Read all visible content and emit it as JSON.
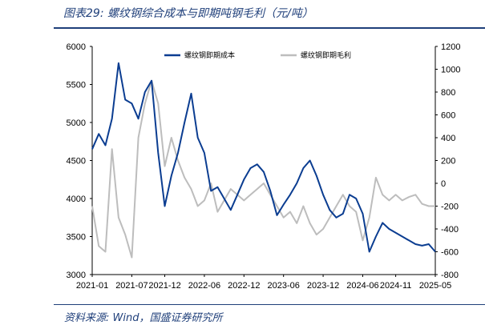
{
  "header": {
    "title": "图表29:  螺纹钢综合成本与即期吨钢毛利（元/吨）"
  },
  "footer": {
    "source": "资料来源:  Wind，国盛证券研究所"
  },
  "colors": {
    "cost": "#0b3d91",
    "margin": "#bdbdbd",
    "rule": "#1f3f7a"
  },
  "chart_data": {
    "type": "line",
    "title": "",
    "xlabel": "",
    "ylabel": "",
    "x_ticks": [
      "2021-01",
      "2021-07",
      "2021-12",
      "2022-06",
      "2022-12",
      "2023-06",
      "2023-12",
      "2024-06",
      "2024-11",
      "2025-05"
    ],
    "xlim": [
      "2021-01",
      "2025-05"
    ],
    "y_left": {
      "lim": [
        3000,
        6000
      ],
      "ticks": [
        3000,
        3500,
        4000,
        4500,
        5000,
        5500,
        6000
      ]
    },
    "y_right": {
      "lim": [
        -800,
        1200
      ],
      "ticks": [
        -800,
        -600,
        -400,
        -200,
        0,
        200,
        400,
        600,
        800,
        1000,
        1200
      ]
    },
    "legend_position": "top-center",
    "series": [
      {
        "name": "螺纹钢即期成本",
        "axis": "left",
        "points": [
          [
            "2021-01",
            4650
          ],
          [
            "2021-02",
            4850
          ],
          [
            "2021-03",
            4700
          ],
          [
            "2021-04",
            5050
          ],
          [
            "2021-05",
            5780
          ],
          [
            "2021-06",
            5300
          ],
          [
            "2021-07",
            5250
          ],
          [
            "2021-08",
            5050
          ],
          [
            "2021-09",
            5400
          ],
          [
            "2021-10",
            5550
          ],
          [
            "2021-11",
            4600
          ],
          [
            "2021-12",
            3900
          ],
          [
            "2022-01",
            4300
          ],
          [
            "2022-02",
            4600
          ],
          [
            "2022-03",
            5000
          ],
          [
            "2022-04",
            5380
          ],
          [
            "2022-05",
            4800
          ],
          [
            "2022-06",
            4600
          ],
          [
            "2022-07",
            4100
          ],
          [
            "2022-08",
            4150
          ],
          [
            "2022-09",
            4000
          ],
          [
            "2022-10",
            3850
          ],
          [
            "2022-11",
            4050
          ],
          [
            "2022-12",
            4250
          ],
          [
            "2023-01",
            4400
          ],
          [
            "2023-02",
            4450
          ],
          [
            "2023-03",
            4350
          ],
          [
            "2023-04",
            4100
          ],
          [
            "2023-05",
            3780
          ],
          [
            "2023-06",
            3920
          ],
          [
            "2023-07",
            4050
          ],
          [
            "2023-08",
            4200
          ],
          [
            "2023-09",
            4400
          ],
          [
            "2023-10",
            4500
          ],
          [
            "2023-11",
            4300
          ],
          [
            "2023-12",
            4050
          ],
          [
            "2024-01",
            3850
          ],
          [
            "2024-02",
            3750
          ],
          [
            "2024-03",
            3800
          ],
          [
            "2024-04",
            4050
          ],
          [
            "2024-05",
            4000
          ],
          [
            "2024-06",
            3800
          ],
          [
            "2024-07",
            3300
          ],
          [
            "2024-08",
            3500
          ],
          [
            "2024-09",
            3680
          ],
          [
            "2024-10",
            3600
          ],
          [
            "2024-11",
            3550
          ],
          [
            "2024-12",
            3500
          ],
          [
            "2025-01",
            3450
          ],
          [
            "2025-02",
            3400
          ],
          [
            "2025-03",
            3380
          ],
          [
            "2025-04",
            3400
          ],
          [
            "2025-05",
            3300
          ]
        ]
      },
      {
        "name": "螺纹钢即期毛利",
        "axis": "right",
        "points": [
          [
            "2021-01",
            -200
          ],
          [
            "2021-02",
            -550
          ],
          [
            "2021-03",
            -600
          ],
          [
            "2021-04",
            300
          ],
          [
            "2021-05",
            -300
          ],
          [
            "2021-06",
            -450
          ],
          [
            "2021-07",
            -650
          ],
          [
            "2021-08",
            400
          ],
          [
            "2021-09",
            700
          ],
          [
            "2021-10",
            900
          ],
          [
            "2021-11",
            700
          ],
          [
            "2021-12",
            150
          ],
          [
            "2022-01",
            400
          ],
          [
            "2022-02",
            200
          ],
          [
            "2022-03",
            50
          ],
          [
            "2022-04",
            -50
          ],
          [
            "2022-05",
            -200
          ],
          [
            "2022-06",
            -150
          ],
          [
            "2022-07",
            0
          ],
          [
            "2022-08",
            -250
          ],
          [
            "2022-09",
            -150
          ],
          [
            "2022-10",
            -50
          ],
          [
            "2022-11",
            -100
          ],
          [
            "2022-12",
            -150
          ],
          [
            "2023-01",
            -100
          ],
          [
            "2023-02",
            -50
          ],
          [
            "2023-03",
            0
          ],
          [
            "2023-04",
            -100
          ],
          [
            "2023-05",
            -200
          ],
          [
            "2023-06",
            -300
          ],
          [
            "2023-07",
            -250
          ],
          [
            "2023-08",
            -350
          ],
          [
            "2023-09",
            -200
          ],
          [
            "2023-10",
            -350
          ],
          [
            "2023-11",
            -450
          ],
          [
            "2023-12",
            -400
          ],
          [
            "2024-01",
            -300
          ],
          [
            "2024-02",
            -200
          ],
          [
            "2024-03",
            -100
          ],
          [
            "2024-04",
            -200
          ],
          [
            "2024-05",
            -250
          ],
          [
            "2024-06",
            -500
          ],
          [
            "2024-07",
            -300
          ],
          [
            "2024-08",
            50
          ],
          [
            "2024-09",
            -100
          ],
          [
            "2024-10",
            -150
          ],
          [
            "2024-11",
            -100
          ],
          [
            "2024-12",
            -150
          ],
          [
            "2025-01",
            -120
          ],
          [
            "2025-02",
            -100
          ],
          [
            "2025-03",
            -180
          ],
          [
            "2025-04",
            -200
          ],
          [
            "2025-05",
            -200
          ]
        ]
      }
    ]
  }
}
